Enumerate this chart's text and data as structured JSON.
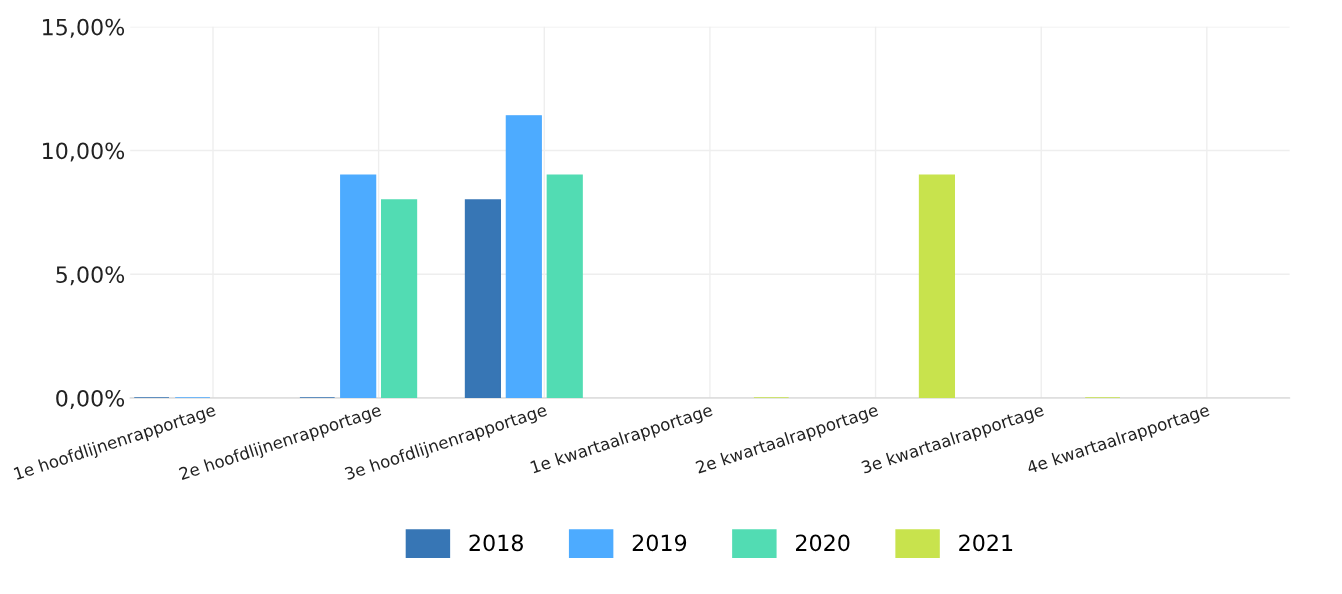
{
  "chart_data": {
    "type": "bar",
    "categories": [
      "1e hoofdlijnenrapportage",
      "2e hoofdlijnenrapportage",
      "3e hoofdlijnenrapportage",
      "1e kwartaalrapportage",
      "2e kwartaalrapportage",
      "3e kwartaalrapportage",
      "4e kwartaalrapportage"
    ],
    "series": [
      {
        "name": "2018",
        "color": "#3776b5",
        "values": [
          0,
          0,
          8.0,
          null,
          null,
          null,
          null
        ]
      },
      {
        "name": "2019",
        "color": "#4dabff",
        "values": [
          0,
          9.0,
          11.4,
          null,
          null,
          null,
          null
        ]
      },
      {
        "name": "2020",
        "color": "#52dcb3",
        "values": [
          null,
          8.0,
          9.0,
          null,
          null,
          null,
          null
        ]
      },
      {
        "name": "2021",
        "color": "#c8e34d",
        "values": [
          null,
          null,
          null,
          0,
          9.0,
          0,
          null
        ]
      }
    ],
    "ylim": [
      0,
      15
    ],
    "yticks": [
      {
        "value": 0,
        "label": "0,00%"
      },
      {
        "value": 5,
        "label": "5,00%"
      },
      {
        "value": 10,
        "label": "10,00%"
      },
      {
        "value": 15,
        "label": "15,00%"
      }
    ],
    "grid": true,
    "legend": "bottom"
  }
}
